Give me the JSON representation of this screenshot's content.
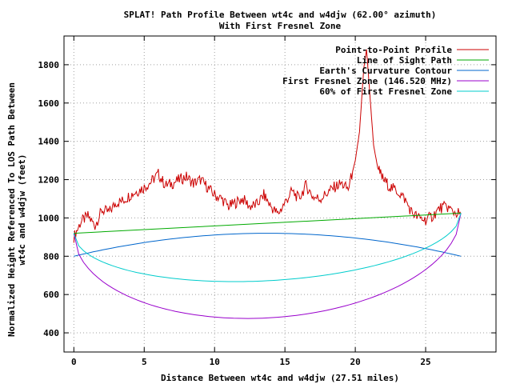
{
  "chart_data": {
    "type": "line",
    "title": "SPLAT! Path Profile Between wt4c and w4djw (62.00° azimuth)",
    "subtitle": "With First Fresnel Zone",
    "xlabel": "Distance Between wt4c and w4djw (27.51 miles)",
    "ylabel_line1": "Normalized Height Referenced To LOS Path Between",
    "ylabel_line2": "wt4c and w4djw (feet)",
    "xlim": [
      -0.7,
      30.0
    ],
    "ylim": [
      300,
      1950
    ],
    "x_ticks": [
      0,
      5,
      10,
      15,
      20,
      25
    ],
    "y_ticks": [
      400,
      600,
      800,
      1000,
      1200,
      1400,
      1600,
      1800
    ],
    "x_tick_labels": [
      "0",
      "5",
      "10",
      "15",
      "20",
      "25"
    ],
    "y_tick_labels": [
      "400",
      "600",
      "800",
      "1000",
      "1200",
      "1400",
      "1600",
      "1800"
    ],
    "grid": true,
    "legend_position": "top-right",
    "total_distance": 27.51,
    "series": [
      {
        "name": "Point-to-Point Profile",
        "color": "#cc0000",
        "points": [
          [
            0,
            900
          ],
          [
            0.5,
            980
          ],
          [
            1,
            1010
          ],
          [
            1.5,
            960
          ],
          [
            2,
            1040
          ],
          [
            2.5,
            1030
          ],
          [
            3,
            1080
          ],
          [
            3.5,
            1090
          ],
          [
            4,
            1120
          ],
          [
            4.5,
            1140
          ],
          [
            5,
            1160
          ],
          [
            5.5,
            1190
          ],
          [
            6,
            1230
          ],
          [
            6.5,
            1170
          ],
          [
            7,
            1180
          ],
          [
            7.5,
            1200
          ],
          [
            8,
            1215
          ],
          [
            8.5,
            1180
          ],
          [
            9,
            1200
          ],
          [
            9.5,
            1160
          ],
          [
            10,
            1120
          ],
          [
            10.5,
            1100
          ],
          [
            11,
            1060
          ],
          [
            11.5,
            1080
          ],
          [
            12,
            1100
          ],
          [
            12.5,
            1060
          ],
          [
            13,
            1070
          ],
          [
            13.5,
            1120
          ],
          [
            14,
            1060
          ],
          [
            14.5,
            1020
          ],
          [
            15,
            1080
          ],
          [
            15.5,
            1140
          ],
          [
            16,
            1100
          ],
          [
            16.5,
            1170
          ],
          [
            17,
            1110
          ],
          [
            17.5,
            1100
          ],
          [
            18,
            1130
          ],
          [
            18.5,
            1160
          ],
          [
            19,
            1180
          ],
          [
            19.5,
            1150
          ],
          [
            20,
            1300
          ],
          [
            20.3,
            1450
          ],
          [
            20.6,
            1780
          ],
          [
            20.8,
            1880
          ],
          [
            21,
            1680
          ],
          [
            21.3,
            1380
          ],
          [
            21.6,
            1260
          ],
          [
            22,
            1200
          ],
          [
            22.5,
            1160
          ],
          [
            23,
            1140
          ],
          [
            23.5,
            1100
          ],
          [
            24,
            1030
          ],
          [
            24.5,
            1000
          ],
          [
            25,
            990
          ],
          [
            25.5,
            1010
          ],
          [
            26,
            1050
          ],
          [
            26.5,
            1060
          ],
          [
            27,
            1030
          ],
          [
            27.51,
            1020
          ]
        ]
      },
      {
        "name": "Line of Sight Path",
        "color": "#00aa00",
        "points": [
          [
            0,
            920
          ],
          [
            27.51,
            1025
          ]
        ]
      },
      {
        "name": "Earth's Curvature Contour",
        "color": "#0066cc",
        "points": [
          [
            0,
            800
          ],
          [
            13.75,
            920
          ],
          [
            27.51,
            800
          ]
        ]
      },
      {
        "name": "First Fresnel Zone (146.520 MHz)",
        "color": "#9900cc",
        "points": [
          [
            0,
            920
          ],
          [
            13.75,
            478
          ],
          [
            27.51,
            1025
          ]
        ]
      },
      {
        "name": "60% of First Fresnel Zone",
        "color": "#00cccc",
        "points": [
          [
            0,
            920
          ],
          [
            13.75,
            672
          ],
          [
            27.51,
            1025
          ]
        ]
      }
    ]
  }
}
